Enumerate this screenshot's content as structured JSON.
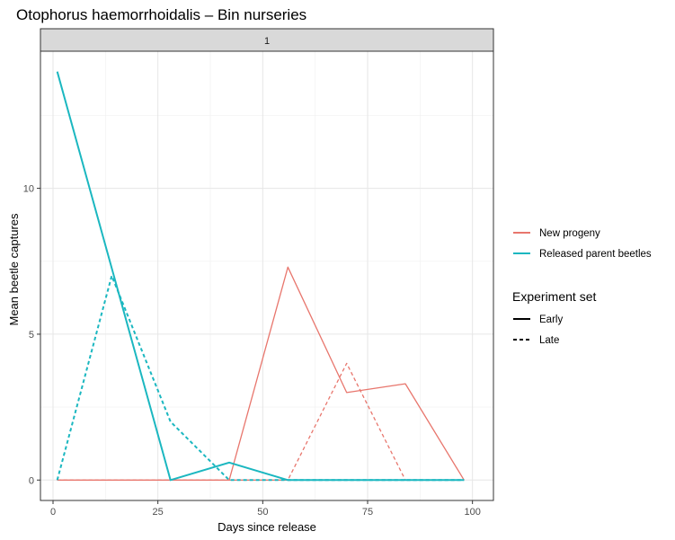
{
  "chart_data": {
    "type": "line",
    "title": "Otophorus haemorrhoidalis – Bin nurseries",
    "facet_label": "1",
    "xlabel": "Days since release",
    "ylabel": "Mean  beetle captures",
    "xlim": [
      -3,
      105
    ],
    "ylim": [
      -0.7,
      14.7
    ],
    "x_ticks": [
      0,
      25,
      50,
      75,
      100
    ],
    "y_ticks": [
      0,
      5,
      10
    ],
    "grid": true,
    "legend_position": "right",
    "colors": {
      "New progeny": "#E8766D",
      "Released parent beetles": "#1BB7C0"
    },
    "legend": {
      "color_entries": [
        "New progeny",
        "Released parent beetles"
      ],
      "linetype_title": "Experiment set",
      "linetype_entries": [
        {
          "label": "Early",
          "dash": "solid"
        },
        {
          "label": "Late",
          "dash": "dashed"
        }
      ]
    },
    "series": [
      {
        "group": "New progeny",
        "set": "Early",
        "x": [
          1,
          14,
          28,
          42,
          56,
          70,
          84,
          98
        ],
        "y": [
          0,
          0,
          0,
          0,
          7.3,
          3.0,
          3.3,
          0
        ]
      },
      {
        "group": "New progeny",
        "set": "Late",
        "x": [
          1,
          14,
          28,
          42,
          56,
          70,
          84,
          98
        ],
        "y": [
          0,
          0,
          0,
          0,
          0,
          4.0,
          0,
          0
        ]
      },
      {
        "group": "Released parent beetles",
        "set": "Early",
        "x": [
          1,
          28,
          42,
          56,
          70,
          84,
          98
        ],
        "y": [
          14,
          0,
          0.6,
          0,
          0,
          0,
          0
        ]
      },
      {
        "group": "Released parent beetles",
        "set": "Late",
        "x": [
          1,
          14,
          28,
          42,
          56,
          70,
          84,
          98
        ],
        "y": [
          0,
          7.0,
          2.0,
          0,
          0,
          0,
          0,
          0
        ]
      }
    ]
  }
}
